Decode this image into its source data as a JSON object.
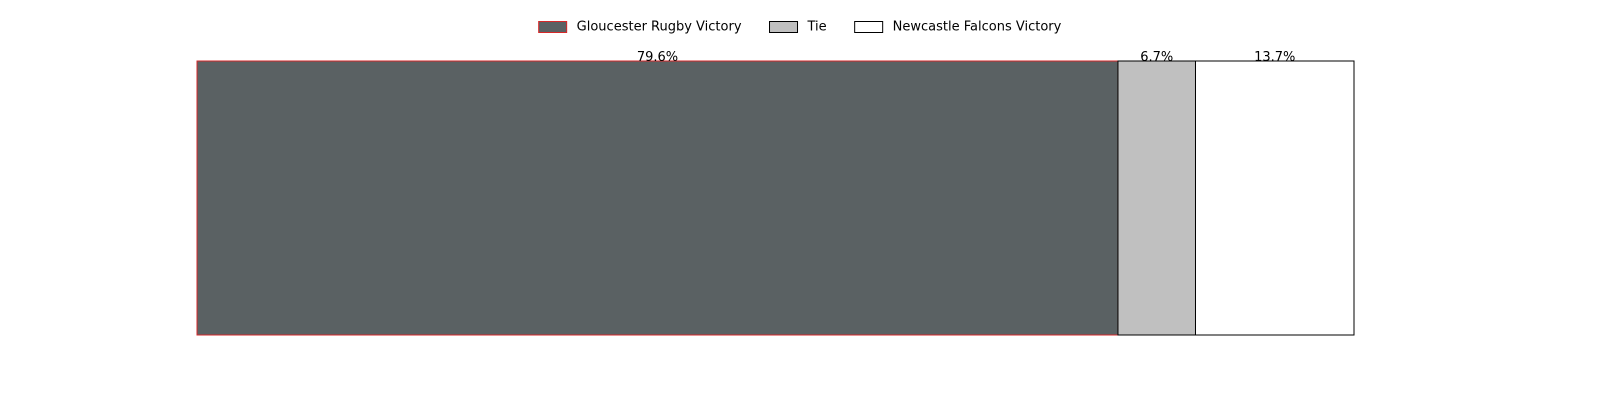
{
  "chart_data": {
    "type": "bar",
    "orientation": "horizontal",
    "stacked": true,
    "normalized": true,
    "categories": [
      ""
    ],
    "series": [
      {
        "name": "Gloucester Rugby Victory",
        "values": [
          79.6
        ],
        "label": "79.6%",
        "fill": "#5a6163",
        "stroke": "#d62728"
      },
      {
        "name": "Tie",
        "values": [
          6.7
        ],
        "label": "6.7%",
        "fill": "#c0c0c0",
        "stroke": "#000000"
      },
      {
        "name": "Newcastle Falcons Victory",
        "values": [
          13.7
        ],
        "label": "13.7%",
        "fill": "#ffffff",
        "stroke": "#000000"
      }
    ],
    "xlim": [
      0,
      100
    ],
    "axes_visible": false,
    "grid": false,
    "legend_position": "top-center",
    "title": "",
    "xlabel": "",
    "ylabel": ""
  }
}
